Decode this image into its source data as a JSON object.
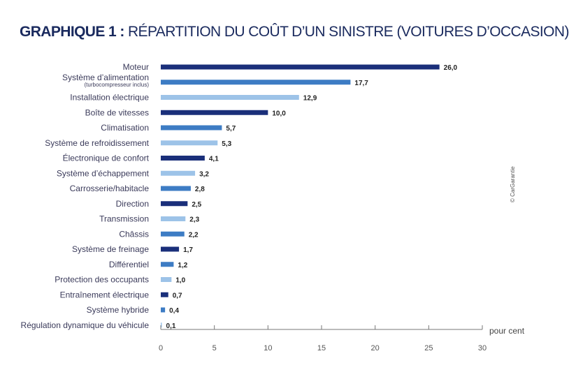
{
  "title": {
    "lead": "GRAPHIQUE 1 :",
    "rest": "RÉPARTITION DU COÛT D’UN SINISTRE (VOITURES D’OCCASION)"
  },
  "credit": "© CarGarantie",
  "colors": {
    "dark": "#1a2f7a",
    "mid": "#3d7cc4",
    "light": "#9dc3e8"
  },
  "chart_data": {
    "type": "bar",
    "orientation": "horizontal",
    "title": "GRAPHIQUE 1 : RÉPARTITION DU COÛT D’UN SINISTRE (VOITURES D’OCCASION)",
    "xlabel": "pour cent",
    "ylabel": "",
    "xlim": [
      0,
      30
    ],
    "xticks": [
      0,
      5,
      10,
      15,
      20,
      25,
      30
    ],
    "grid": false,
    "categories": [
      {
        "label": "Moteur",
        "sublabel": "",
        "value": 26.0,
        "display": "26,0",
        "shade": "dark"
      },
      {
        "label": "Système d’alimentation",
        "sublabel": "(turbocompresseur inclus)",
        "value": 17.7,
        "display": "17,7",
        "shade": "mid"
      },
      {
        "label": "Installation électrique",
        "sublabel": "",
        "value": 12.9,
        "display": "12,9",
        "shade": "light"
      },
      {
        "label": "Boîte de vitesses",
        "sublabel": "",
        "value": 10.0,
        "display": "10,0",
        "shade": "dark"
      },
      {
        "label": "Climatisation",
        "sublabel": "",
        "value": 5.7,
        "display": "5,7",
        "shade": "mid"
      },
      {
        "label": "Système de refroidissement",
        "sublabel": "",
        "value": 5.3,
        "display": "5,3",
        "shade": "light"
      },
      {
        "label": "Électronique de confort",
        "sublabel": "",
        "value": 4.1,
        "display": "4,1",
        "shade": "dark"
      },
      {
        "label": "Système d’échappement",
        "sublabel": "",
        "value": 3.2,
        "display": "3,2",
        "shade": "light"
      },
      {
        "label": "Carrosserie/habitacle",
        "sublabel": "",
        "value": 2.8,
        "display": "2,8",
        "shade": "mid"
      },
      {
        "label": "Direction",
        "sublabel": "",
        "value": 2.5,
        "display": "2,5",
        "shade": "dark"
      },
      {
        "label": "Transmission",
        "sublabel": "",
        "value": 2.3,
        "display": "2,3",
        "shade": "light"
      },
      {
        "label": "Châssis",
        "sublabel": "",
        "value": 2.2,
        "display": "2,2",
        "shade": "mid"
      },
      {
        "label": "Système de freinage",
        "sublabel": "",
        "value": 1.7,
        "display": "1,7",
        "shade": "dark"
      },
      {
        "label": "Différentiel",
        "sublabel": "",
        "value": 1.2,
        "display": "1,2",
        "shade": "mid"
      },
      {
        "label": "Protection des occupants",
        "sublabel": "",
        "value": 1.0,
        "display": "1,0",
        "shade": "light"
      },
      {
        "label": "Entraînement électrique",
        "sublabel": "",
        "value": 0.7,
        "display": "0,7",
        "shade": "dark"
      },
      {
        "label": "Système hybride",
        "sublabel": "",
        "value": 0.4,
        "display": "0,4",
        "shade": "mid"
      },
      {
        "label": "Régulation dynamique du véhicule",
        "sublabel": "",
        "value": 0.1,
        "display": "0,1",
        "shade": "light"
      }
    ]
  }
}
